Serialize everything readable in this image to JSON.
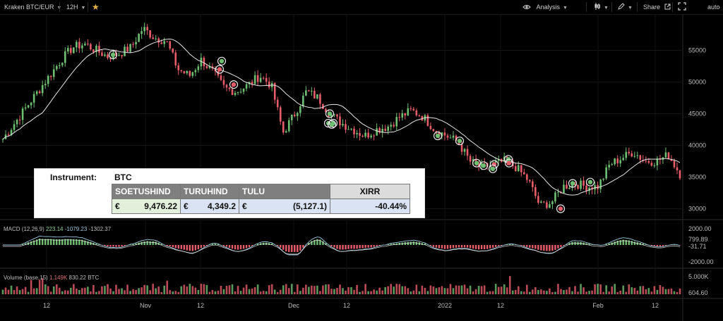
{
  "toolbar": {
    "symbol": "Kraken BTC/EUR",
    "interval": "12H",
    "analysis": "Analysis",
    "share": "Share",
    "auto": "auto"
  },
  "colors": {
    "up": "#6fbf73",
    "down": "#e85d6a",
    "ma": "#e6e6e6",
    "background": "#000000"
  },
  "chart_data": [
    {
      "type": "candlestick",
      "price_axis_ticks": [
        "55000",
        "50000",
        "45000",
        "40000",
        "35000",
        "30000"
      ],
      "ylim": [
        28500,
        58500
      ],
      "x_labels": [
        "12",
        "Nov",
        "12",
        "Dec",
        "12",
        "2022",
        "12",
        "Feb",
        "12"
      ],
      "approx_close_path": [
        41000,
        43500,
        46000,
        48500,
        51000,
        53500,
        55500,
        56000,
        55000,
        54000,
        54500,
        55500,
        58500,
        57000,
        56500,
        52000,
        51000,
        53500,
        51500,
        49000,
        48500,
        49500,
        51000,
        49500,
        42000,
        45000,
        48500,
        47500,
        45000,
        43500,
        42500,
        41500,
        42500,
        43000,
        44500,
        45500,
        44500,
        42500,
        41500,
        40500,
        37500,
        36500,
        37000,
        37500,
        36500,
        34500,
        30500,
        31000,
        33500,
        34000,
        33500,
        33500,
        37000,
        38000,
        39000,
        37500,
        37500,
        38500,
        35500
      ],
      "markers": [
        {
          "value": 54300,
          "kind": "buy"
        },
        {
          "value": 53300,
          "kind": "buy"
        },
        {
          "value": 52000,
          "kind": "sell"
        },
        {
          "value": 49600,
          "kind": "sell"
        },
        {
          "value": 45000,
          "kind": "buy"
        },
        {
          "value": 43500,
          "kind": "buy"
        },
        {
          "value": 43500,
          "kind": "buy"
        },
        {
          "value": 43300,
          "kind": "buy"
        },
        {
          "value": 41500,
          "kind": "buy"
        },
        {
          "value": 40700,
          "kind": "buy"
        },
        {
          "value": 37200,
          "kind": "buy"
        },
        {
          "value": 36800,
          "kind": "buy"
        },
        {
          "value": 37000,
          "kind": "sell"
        },
        {
          "value": 36300,
          "kind": "buy"
        },
        {
          "value": 37800,
          "kind": "buy"
        },
        {
          "value": 37200,
          "kind": "sell"
        },
        {
          "value": 34000,
          "kind": "buy"
        },
        {
          "value": 34200,
          "kind": "buy"
        },
        {
          "value": 30000,
          "kind": "sell"
        }
      ]
    },
    {
      "type": "macd",
      "label": "MACD (12,26,9)",
      "values": [
        "223.14",
        "-1079.23",
        "-1302.37"
      ],
      "axis_ticks": [
        "2000.00",
        "799.89",
        "-31.71",
        "-2000.00"
      ]
    },
    {
      "type": "volume",
      "label": "Volume (base,15)",
      "values": [
        "1.149K",
        "830.22 BTC"
      ],
      "axis_ticks": [
        "5.000K",
        "604.60"
      ]
    }
  ],
  "table": {
    "instrument_label": "Instrument:",
    "instrument_value": "BTC",
    "headers": [
      "SOETUSHIND",
      "TURUHIND",
      "TULU",
      "XIRR"
    ],
    "currency": "€",
    "values": [
      "9,476.22",
      "4,349.2",
      "(5,127.1)",
      "-40.44%"
    ]
  }
}
